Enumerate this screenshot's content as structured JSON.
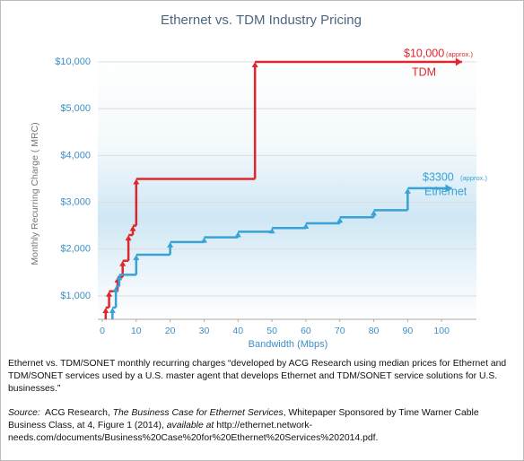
{
  "chart_data": {
    "type": "step",
    "title": "Ethernet vs. TDM Industry Pricing",
    "x_label": "Bandwidth (Mbps)",
    "y_label": "Monthly Recurring Charge ( MRC)",
    "xlim": [
      0,
      110
    ],
    "xticks": [
      0,
      10,
      20,
      30,
      40,
      50,
      60,
      70,
      80,
      90,
      100
    ],
    "ylim": [
      500,
      10000
    ],
    "yticks": [
      {
        "value": 1000,
        "label": "$1,000"
      },
      {
        "value": 2000,
        "label": "$2,000"
      },
      {
        "value": 3000,
        "label": "$3,000"
      },
      {
        "value": 4000,
        "label": "$4,000"
      },
      {
        "value": 5000,
        "label": "$5,000"
      },
      {
        "value": 10000,
        "label": "$10,000"
      }
    ],
    "grid": true,
    "series": [
      {
        "name": "TDM",
        "color": "#e0262b",
        "x": [
          1,
          2,
          4.5,
          6,
          7.7,
          9,
          10,
          45,
          106
        ],
        "values": [
          750,
          1100,
          1400,
          1750,
          2300,
          2500,
          3500,
          10000,
          10000
        ]
      },
      {
        "name": "Ethernet",
        "color": "#38a2d6",
        "x": [
          3,
          4,
          5,
          10,
          20,
          30,
          40,
          50,
          60,
          70,
          80,
          90,
          103
        ],
        "values": [
          750,
          1200,
          1450,
          1880,
          2150,
          2250,
          2370,
          2450,
          2550,
          2680,
          2830,
          3300,
          3300
        ]
      }
    ],
    "annotations": [
      "$10,000",
      "(approx.)",
      "$3300",
      "(approx.)"
    ]
  },
  "caption": "Ethernet vs. TDM/SONET monthly recurring charges “developed by ACG Research using median prices for Ethernet and TDM/SONET services used by a U.S. master agent that develops Ethernet and TDM/SONET service solutions for U.S. businesses.”",
  "source": [
    {
      "text": "Source:",
      "italic": true
    },
    {
      "text": "  ACG Research, ",
      "italic": false
    },
    {
      "text": "The Business Case for Ethernet Services",
      "italic": true
    },
    {
      "text": ", Whitepaper Sponsored by Time Warner Cable Business Class, at 4, Figure 1 (2014), ",
      "italic": false
    },
    {
      "text": "available at",
      "italic": true
    },
    {
      "text": " http://ethernet.network-needs.com/documents/Business%20Case%20for%20Ethernet%20Services%202014.pdf.",
      "italic": false
    }
  ]
}
